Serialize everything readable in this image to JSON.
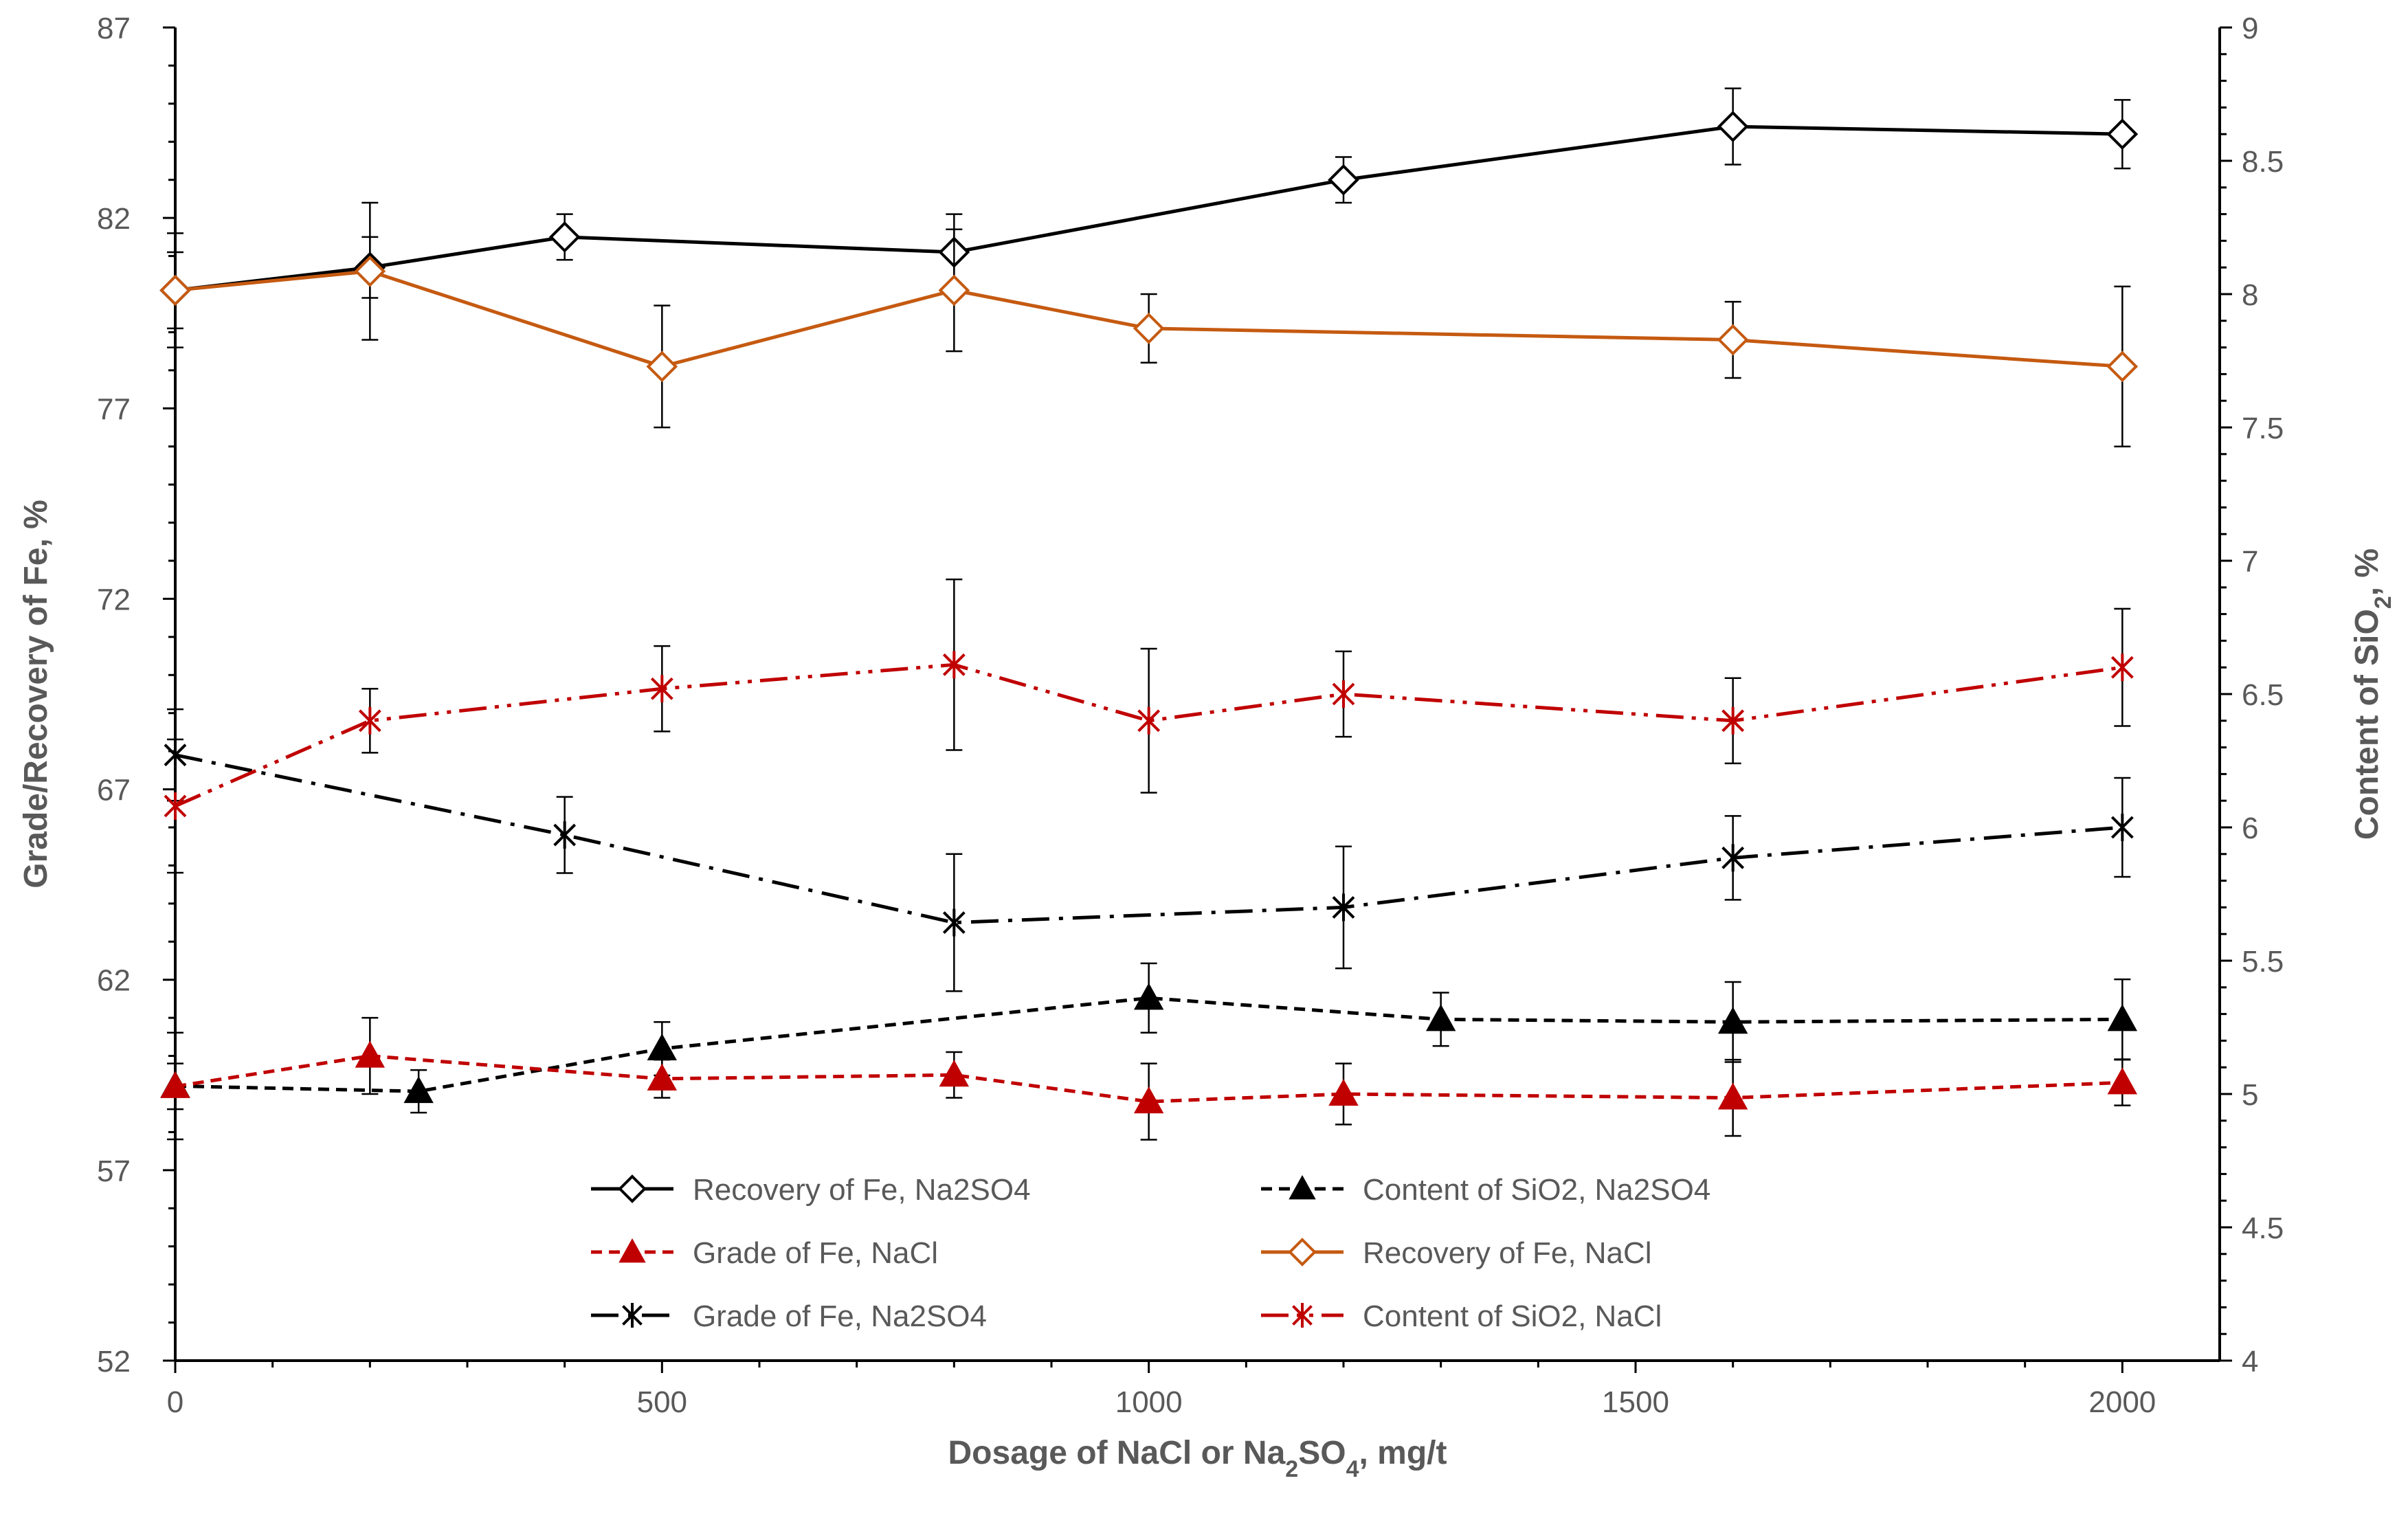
{
  "chart_data": {
    "type": "line",
    "title": "",
    "xlabel_parts": {
      "prefix": "Dosage of NaCl or Na",
      "sub1": "2",
      "mid": "SO",
      "sub2": "4",
      "suffix": ", mg/t"
    },
    "ylabel_left": "Grade/Recovery of Fe, %",
    "ylabel_right_parts": {
      "prefix": "Content of SiO",
      "sub": "2",
      "suffix": ", %"
    },
    "xlim": [
      0,
      2100
    ],
    "ylim_left": [
      52,
      87
    ],
    "ylim_right": [
      4,
      9
    ],
    "x_ticks": [
      {
        "value": 0,
        "label": "0"
      },
      {
        "value": 500,
        "label": "500"
      },
      {
        "value": 1000,
        "label": "1000"
      },
      {
        "value": 1500,
        "label": "1500"
      },
      {
        "value": 2000,
        "label": "2000"
      }
    ],
    "y_left_ticks": [
      {
        "value": 52,
        "label": "52"
      },
      {
        "value": 57,
        "label": "57"
      },
      {
        "value": 62,
        "label": "62"
      },
      {
        "value": 67,
        "label": "67"
      },
      {
        "value": 72,
        "label": "72"
      },
      {
        "value": 77,
        "label": "77"
      },
      {
        "value": 82,
        "label": "82"
      },
      {
        "value": 87,
        "label": "87"
      }
    ],
    "y_right_ticks": [
      {
        "value": 4,
        "label": "4"
      },
      {
        "value": 4.5,
        "label": "4.5"
      },
      {
        "value": 5,
        "label": "5"
      },
      {
        "value": 5.5,
        "label": "5.5"
      },
      {
        "value": 6,
        "label": "6"
      },
      {
        "value": 6.5,
        "label": "6.5"
      },
      {
        "value": 7,
        "label": "7"
      },
      {
        "value": 7.5,
        "label": "7.5"
      },
      {
        "value": 8,
        "label": "8"
      },
      {
        "value": 8.5,
        "label": "8.5"
      },
      {
        "value": 9,
        "label": "9"
      }
    ],
    "series": [
      {
        "name": "Recovery of Fe, Na2SO4",
        "axis": "left",
        "color": "#000000",
        "dash": "solid",
        "marker": "diamond",
        "x": [
          0,
          200,
          400,
          800,
          1200,
          1600,
          2000
        ],
        "y": [
          80.1,
          80.7,
          81.5,
          81.1,
          83.0,
          84.4,
          84.2
        ],
        "err": [
          1.5,
          0.8,
          0.6,
          1.0,
          0.6,
          1.0,
          0.9
        ]
      },
      {
        "name": "Content of SiO2,  Na2SO4",
        "axis": "right",
        "color": "#000000",
        "dash": "dash",
        "marker": "triangle",
        "x": [
          0,
          250,
          500,
          1000,
          1300,
          1600,
          2000
        ],
        "y": [
          5.03,
          5.01,
          5.17,
          5.36,
          5.28,
          5.27,
          5.28
        ],
        "err": [
          0.2,
          0.08,
          0.1,
          0.13,
          0.1,
          0.15,
          0.15
        ]
      },
      {
        "name": "Grade of Fe, NaCl",
        "axis": "left",
        "color": "#c00000",
        "dash": "dash",
        "marker": "triangle",
        "x": [
          0,
          200,
          500,
          800,
          1000,
          1200,
          1600,
          2000
        ],
        "y": [
          59.2,
          60.0,
          59.4,
          59.5,
          58.8,
          59.0,
          58.9,
          59.3
        ],
        "err": [
          0.6,
          1.0,
          0.5,
          0.6,
          1.0,
          0.8,
          1.0,
          0.6
        ]
      },
      {
        "name": "Recovery of Fe, NaCl",
        "axis": "left",
        "color": "#c55a11",
        "dash": "solid",
        "marker": "diamond",
        "x": [
          0,
          200,
          500,
          800,
          1000,
          1600,
          2000
        ],
        "y": [
          80.1,
          80.6,
          78.1,
          80.1,
          79.1,
          78.8,
          78.1
        ],
        "err": [
          1.0,
          1.8,
          1.6,
          1.6,
          0.9,
          1.0,
          2.1
        ]
      },
      {
        "name": "Grade of Fe, Na2SO4",
        "axis": "left",
        "color": "#000000",
        "dash": "dashdot",
        "marker": "star",
        "x": [
          0,
          400,
          800,
          1200,
          1600,
          2000
        ],
        "y": [
          67.9,
          65.8,
          63.5,
          63.9,
          65.2,
          66.0
        ],
        "err": [
          1.2,
          1.0,
          1.8,
          1.6,
          1.1,
          1.3
        ]
      },
      {
        "name": "Content of SiO2, NaCl",
        "axis": "right",
        "color": "#c00000",
        "dash": "dashdotdot",
        "marker": "star",
        "x": [
          0,
          200,
          500,
          800,
          1000,
          1200,
          1600,
          2000
        ],
        "y": [
          6.08,
          6.4,
          6.52,
          6.61,
          6.4,
          6.5,
          6.4,
          6.6
        ],
        "err": [
          0.25,
          0.12,
          0.16,
          0.32,
          0.27,
          0.16,
          0.16,
          0.22
        ]
      }
    ],
    "legend_order": [
      0,
      1,
      2,
      3,
      4,
      5
    ],
    "legend_placement": "bottom-center"
  }
}
